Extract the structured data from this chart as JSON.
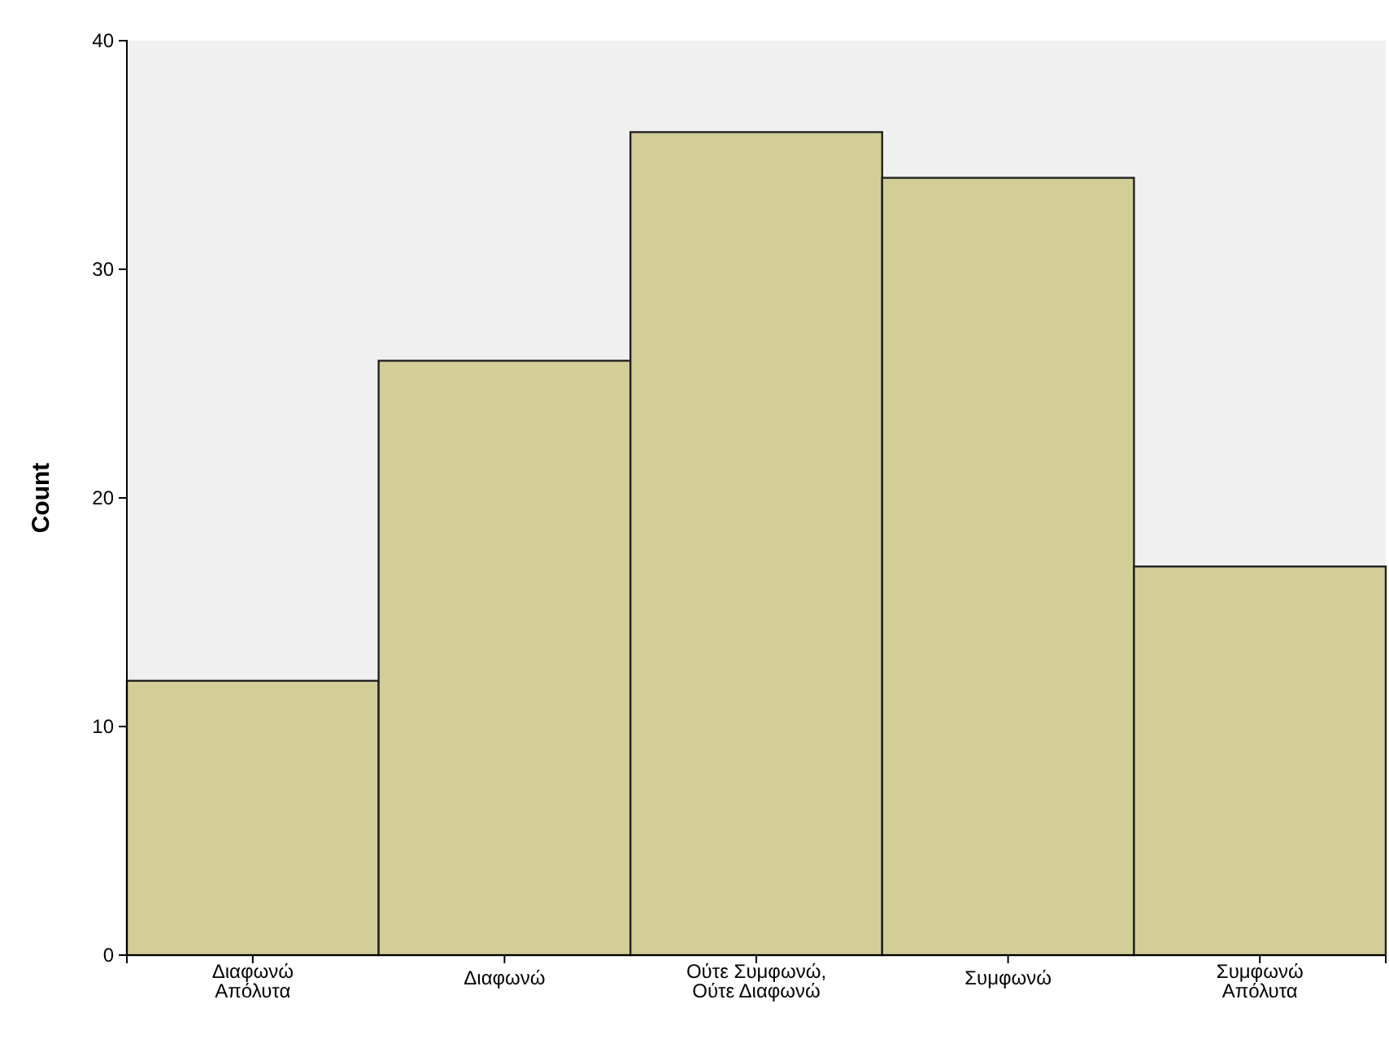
{
  "chart_data": {
    "type": "bar",
    "ylabel": "Count",
    "categories": [
      "Διαφωνώ Απόλυτα",
      "Διαφωνώ",
      "Ούτε Συμφωνώ, Ούτε Διαφωνώ",
      "Συμφωνώ",
      "Συμφωνώ Απόλυτα"
    ],
    "values": [
      12,
      26,
      36,
      34,
      17
    ],
    "color": "#d3ce97",
    "ylim": [
      0,
      40
    ],
    "yticks": [
      0,
      10,
      20,
      30,
      40
    ],
    "grid": false
  }
}
